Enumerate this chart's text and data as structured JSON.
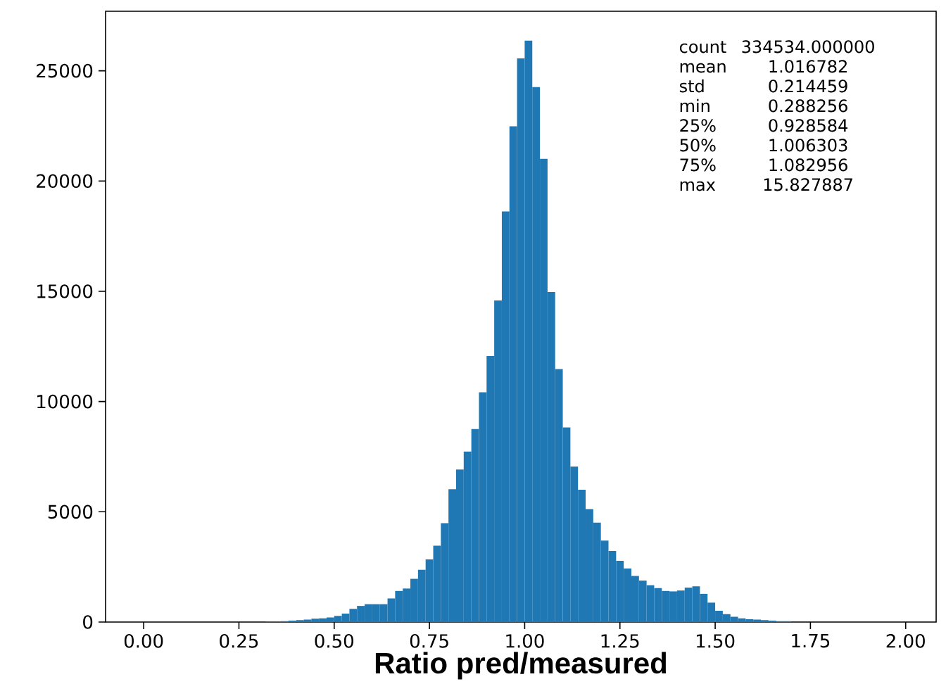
{
  "chart_data": {
    "type": "histogram",
    "xlabel": "Ratio pred/measured",
    "bins": [
      0.32,
      0.34,
      0.36,
      0.38,
      0.4,
      0.42,
      0.44,
      0.46,
      0.48,
      0.5,
      0.52,
      0.54,
      0.56,
      0.58,
      0.6,
      0.62,
      0.64,
      0.66,
      0.68,
      0.7,
      0.72,
      0.74,
      0.76,
      0.78,
      0.8,
      0.82,
      0.84,
      0.86,
      0.88,
      0.9,
      0.92,
      0.94,
      0.96,
      0.98,
      1.0,
      1.02,
      1.04,
      1.06,
      1.08,
      1.1,
      1.12,
      1.14,
      1.16,
      1.18,
      1.2,
      1.22,
      1.24,
      1.26,
      1.28,
      1.3,
      1.32,
      1.34,
      1.36,
      1.38,
      1.4,
      1.42,
      1.44,
      1.46,
      1.48,
      1.5,
      1.52,
      1.54,
      1.56,
      1.58,
      1.6,
      1.62,
      1.64,
      1.66,
      1.68,
      1.7
    ],
    "values": [
      20,
      20,
      40,
      60,
      90,
      110,
      150,
      170,
      210,
      280,
      380,
      600,
      730,
      810,
      810,
      810,
      1070,
      1410,
      1520,
      1960,
      2370,
      2840,
      3460,
      4480,
      6020,
      6920,
      7730,
      8750,
      10420,
      12060,
      14580,
      18620,
      22480,
      25560,
      26370,
      24260,
      21010,
      14970,
      11470,
      8820,
      7050,
      6000,
      5120,
      4510,
      3690,
      3220,
      2780,
      2430,
      2090,
      1880,
      1670,
      1540,
      1410,
      1390,
      1430,
      1560,
      1620,
      1280,
      880,
      510,
      360,
      240,
      170,
      130,
      110,
      90,
      60,
      40,
      40
    ],
    "color": "#1f77b4",
    "xlim": [
      -0.1,
      2.08
    ],
    "ylim": [
      0,
      27700
    ],
    "xticks": [
      {
        "value": 0,
        "label": "0.00"
      },
      {
        "value": 0.25,
        "label": "0.25"
      },
      {
        "value": 0.5,
        "label": "0.50"
      },
      {
        "value": 0.75,
        "label": "0.75"
      },
      {
        "value": 1,
        "label": "1.00"
      },
      {
        "value": 1.25,
        "label": "1.25"
      },
      {
        "value": 1.5,
        "label": "1.50"
      },
      {
        "value": 1.75,
        "label": "1.75"
      },
      {
        "value": 2,
        "label": "2.00"
      }
    ],
    "yticks": [
      0,
      5000,
      10000,
      15000,
      20000,
      25000
    ],
    "annotations": [
      "count",
      "334534.000000",
      "mean",
      "1.016782",
      "std",
      "0.214459",
      "min",
      "0.288256",
      "25%",
      "0.928584",
      "50%",
      "1.006303",
      "75%",
      "1.082956",
      "max",
      "15.827887"
    ]
  }
}
